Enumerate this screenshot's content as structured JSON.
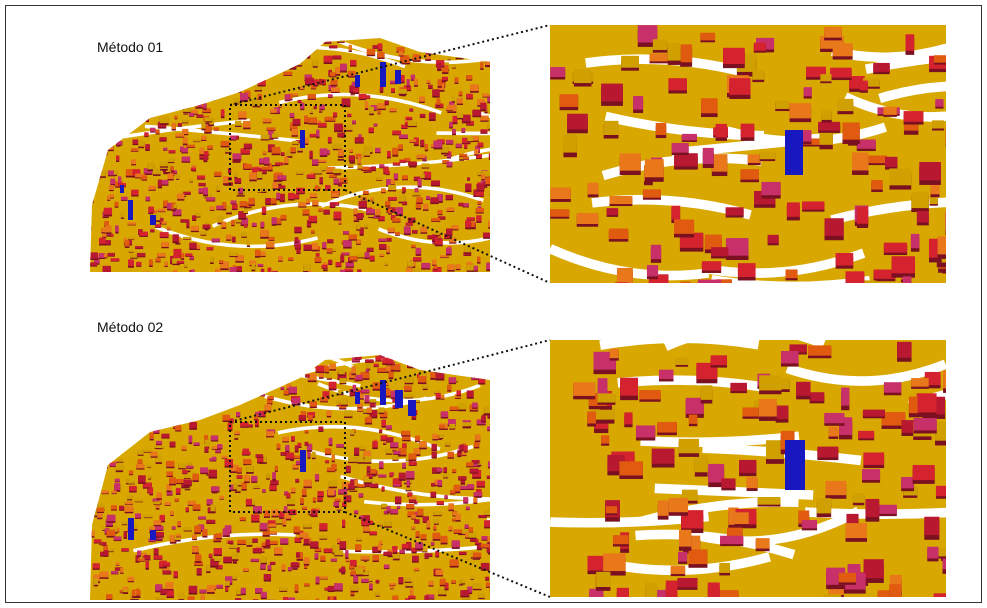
{
  "panels": [
    {
      "label": "Método 01"
    },
    {
      "label": "Método 02"
    }
  ]
}
